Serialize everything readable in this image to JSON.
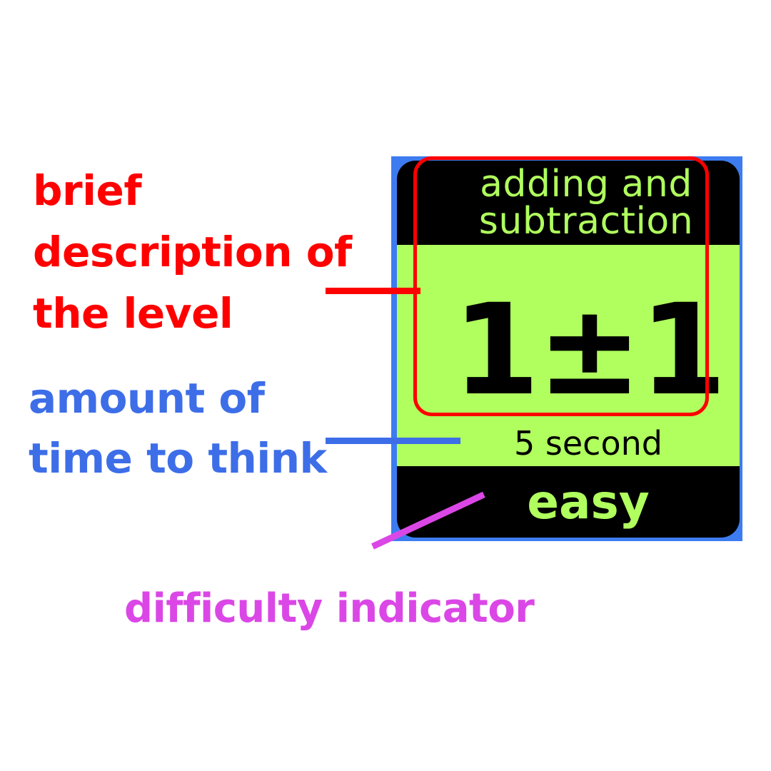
{
  "card": {
    "title_lines": [
      "adding and",
      "subtraction"
    ],
    "expression": "1±1",
    "time": "5 second",
    "difficulty": "easy"
  },
  "callouts": {
    "description_lines": [
      "brief",
      "description of",
      "the level"
    ],
    "time_lines": [
      "amount of",
      "time to think"
    ],
    "difficulty_label": "difficulty indicator"
  },
  "colors": {
    "card_background": "#000000",
    "card_accent": "#b0ff5e",
    "card_frame": "#3d7cf0",
    "description_callout": "#ff0000",
    "time_callout": "#3d6ee8",
    "difficulty_callout": "#db47e6"
  }
}
